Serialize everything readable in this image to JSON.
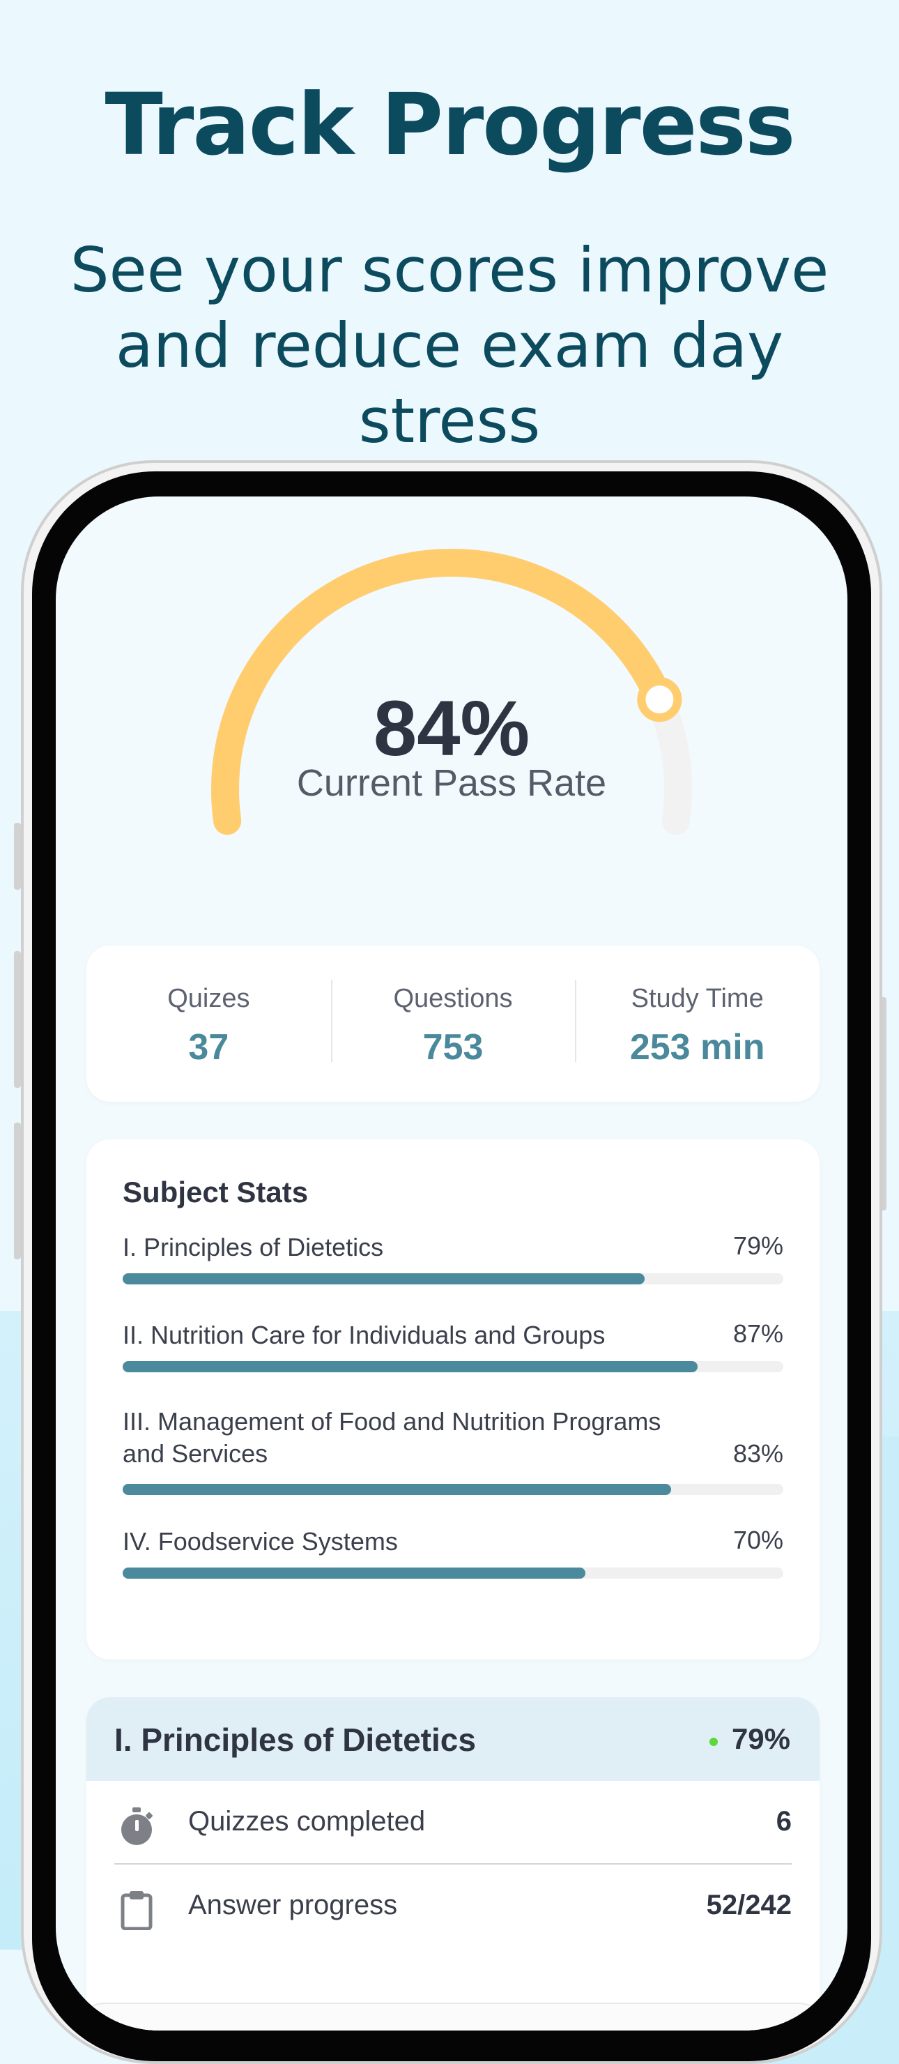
{
  "header": {
    "headline": "Track Progress",
    "subhead": "See your scores improve and reduce exam day stress"
  },
  "gauge": {
    "value_label": "84%",
    "caption": "Current Pass Rate",
    "fraction": 0.84,
    "fill_color": "#ffcd6e",
    "track_color": "#f2f2f2"
  },
  "stats": [
    {
      "label": "Quizes",
      "value": "37"
    },
    {
      "label": "Questions",
      "value": "753"
    },
    {
      "label": "Study Time",
      "value": "253 min"
    }
  ],
  "subject_stats": {
    "title": "Subject Stats",
    "items": [
      {
        "name": "I. Principles of Dietetics",
        "percent_label": "79%",
        "fraction": 0.79
      },
      {
        "name": "II. Nutrition Care for Individuals and Groups",
        "percent_label": "87%",
        "fraction": 0.87
      },
      {
        "name": "III. Management of Food and Nutrition Programs and Services",
        "percent_label": "83%",
        "fraction": 0.83
      },
      {
        "name": "IV. Foodservice Systems",
        "percent_label": "70%",
        "fraction": 0.7
      }
    ],
    "bar_color": "#4a8a9c"
  },
  "detail": {
    "title": "I. Principles of Dietetics",
    "percent_label": "79%",
    "status_color": "#5cd83a",
    "rows": [
      {
        "icon": "stopwatch-icon",
        "label": "Quizzes completed",
        "value": "6"
      },
      {
        "icon": "clipboard-icon",
        "label": "Answer progress",
        "value": "52/242"
      }
    ]
  }
}
